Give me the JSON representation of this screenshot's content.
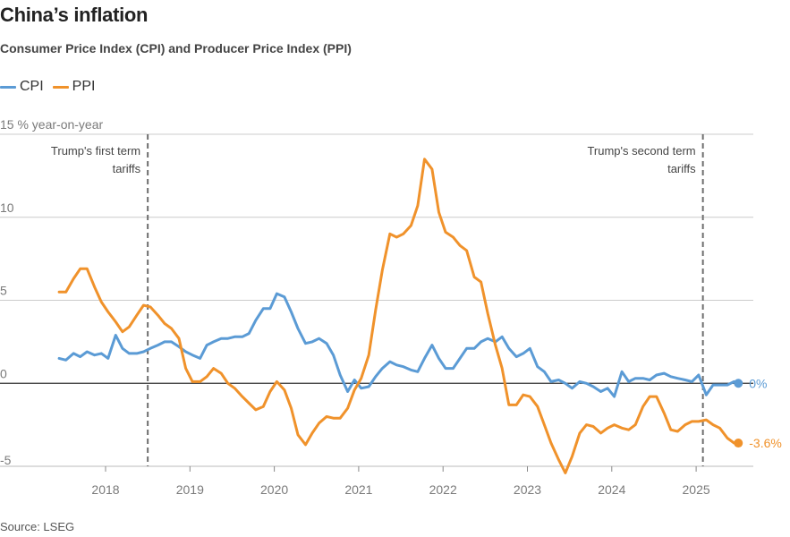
{
  "title": "China’s inflation",
  "subtitle": "Consumer Price Index (CPI) and Producer Price Index (PPI)",
  "source": "Source: LSEG",
  "legend": [
    {
      "label": "CPI",
      "color": "#5b9bd5"
    },
    {
      "label": "PPI",
      "color": "#f0922b"
    }
  ],
  "chart_data": {
    "type": "line",
    "ylabel": "% year-on-year",
    "ylim": [
      -5,
      15
    ],
    "yticks": [
      15,
      10,
      5,
      0,
      -5
    ],
    "xlim": [
      2017.3,
      2025.6
    ],
    "xticks": [
      2018,
      2019,
      2020,
      2021,
      2022,
      2023,
      2024,
      2025
    ],
    "grid": "horizontal",
    "legend_position": "top-left",
    "annotations": [
      {
        "x": 2018.5,
        "label": [
          "Trump's first term",
          "tariffs"
        ],
        "align": "left-of-line"
      },
      {
        "x": 2025.08,
        "label": [
          "Trump's second term",
          "tariffs"
        ],
        "align": "left-of-line"
      }
    ],
    "series": [
      {
        "name": "CPI",
        "color": "#5b9bd5",
        "end_label": "0%",
        "points": [
          [
            2017.45,
            1.5
          ],
          [
            2017.53,
            1.4
          ],
          [
            2017.62,
            1.8
          ],
          [
            2017.7,
            1.6
          ],
          [
            2017.78,
            1.9
          ],
          [
            2017.87,
            1.7
          ],
          [
            2017.95,
            1.8
          ],
          [
            2018.03,
            1.5
          ],
          [
            2018.12,
            2.9
          ],
          [
            2018.2,
            2.1
          ],
          [
            2018.28,
            1.8
          ],
          [
            2018.37,
            1.8
          ],
          [
            2018.45,
            1.9
          ],
          [
            2018.53,
            2.1
          ],
          [
            2018.62,
            2.3
          ],
          [
            2018.7,
            2.5
          ],
          [
            2018.78,
            2.5
          ],
          [
            2018.87,
            2.2
          ],
          [
            2018.95,
            1.9
          ],
          [
            2019.03,
            1.7
          ],
          [
            2019.12,
            1.5
          ],
          [
            2019.2,
            2.3
          ],
          [
            2019.28,
            2.5
          ],
          [
            2019.37,
            2.7
          ],
          [
            2019.45,
            2.7
          ],
          [
            2019.53,
            2.8
          ],
          [
            2019.62,
            2.8
          ],
          [
            2019.7,
            3.0
          ],
          [
            2019.78,
            3.8
          ],
          [
            2019.87,
            4.5
          ],
          [
            2019.95,
            4.5
          ],
          [
            2020.03,
            5.4
          ],
          [
            2020.12,
            5.2
          ],
          [
            2020.2,
            4.3
          ],
          [
            2020.28,
            3.3
          ],
          [
            2020.37,
            2.4
          ],
          [
            2020.45,
            2.5
          ],
          [
            2020.53,
            2.7
          ],
          [
            2020.62,
            2.4
          ],
          [
            2020.7,
            1.7
          ],
          [
            2020.78,
            0.5
          ],
          [
            2020.87,
            -0.5
          ],
          [
            2020.95,
            0.2
          ],
          [
            2021.03,
            -0.3
          ],
          [
            2021.12,
            -0.2
          ],
          [
            2021.2,
            0.4
          ],
          [
            2021.28,
            0.9
          ],
          [
            2021.37,
            1.3
          ],
          [
            2021.45,
            1.1
          ],
          [
            2021.53,
            1.0
          ],
          [
            2021.62,
            0.8
          ],
          [
            2021.7,
            0.7
          ],
          [
            2021.78,
            1.5
          ],
          [
            2021.87,
            2.3
          ],
          [
            2021.95,
            1.5
          ],
          [
            2022.03,
            0.9
          ],
          [
            2022.12,
            0.9
          ],
          [
            2022.2,
            1.5
          ],
          [
            2022.28,
            2.1
          ],
          [
            2022.37,
            2.1
          ],
          [
            2022.45,
            2.5
          ],
          [
            2022.53,
            2.7
          ],
          [
            2022.62,
            2.5
          ],
          [
            2022.7,
            2.8
          ],
          [
            2022.78,
            2.1
          ],
          [
            2022.87,
            1.6
          ],
          [
            2022.95,
            1.8
          ],
          [
            2023.03,
            2.1
          ],
          [
            2023.12,
            1.0
          ],
          [
            2023.2,
            0.7
          ],
          [
            2023.28,
            0.1
          ],
          [
            2023.37,
            0.2
          ],
          [
            2023.45,
            0.0
          ],
          [
            2023.53,
            -0.3
          ],
          [
            2023.62,
            0.1
          ],
          [
            2023.7,
            0.0
          ],
          [
            2023.78,
            -0.2
          ],
          [
            2023.87,
            -0.5
          ],
          [
            2023.95,
            -0.3
          ],
          [
            2024.03,
            -0.8
          ],
          [
            2024.12,
            0.7
          ],
          [
            2024.2,
            0.1
          ],
          [
            2024.28,
            0.3
          ],
          [
            2024.37,
            0.3
          ],
          [
            2024.45,
            0.2
          ],
          [
            2024.53,
            0.5
          ],
          [
            2024.62,
            0.6
          ],
          [
            2024.7,
            0.4
          ],
          [
            2024.78,
            0.3
          ],
          [
            2024.87,
            0.2
          ],
          [
            2024.95,
            0.1
          ],
          [
            2025.03,
            0.5
          ],
          [
            2025.12,
            -0.7
          ],
          [
            2025.2,
            -0.1
          ],
          [
            2025.28,
            -0.1
          ],
          [
            2025.37,
            -0.1
          ],
          [
            2025.45,
            0.1
          ],
          [
            2025.5,
            0.0
          ]
        ]
      },
      {
        "name": "PPI",
        "color": "#f0922b",
        "end_label": "-3.6%",
        "points": [
          [
            2017.45,
            5.5
          ],
          [
            2017.53,
            5.5
          ],
          [
            2017.62,
            6.3
          ],
          [
            2017.7,
            6.9
          ],
          [
            2017.78,
            6.9
          ],
          [
            2017.87,
            5.8
          ],
          [
            2017.95,
            4.9
          ],
          [
            2018.03,
            4.3
          ],
          [
            2018.12,
            3.7
          ],
          [
            2018.2,
            3.1
          ],
          [
            2018.28,
            3.4
          ],
          [
            2018.37,
            4.1
          ],
          [
            2018.45,
            4.7
          ],
          [
            2018.53,
            4.6
          ],
          [
            2018.62,
            4.1
          ],
          [
            2018.7,
            3.6
          ],
          [
            2018.78,
            3.3
          ],
          [
            2018.87,
            2.7
          ],
          [
            2018.95,
            0.9
          ],
          [
            2019.03,
            0.1
          ],
          [
            2019.12,
            0.1
          ],
          [
            2019.2,
            0.4
          ],
          [
            2019.28,
            0.9
          ],
          [
            2019.37,
            0.6
          ],
          [
            2019.45,
            0.0
          ],
          [
            2019.53,
            -0.3
          ],
          [
            2019.62,
            -0.8
          ],
          [
            2019.7,
            -1.2
          ],
          [
            2019.78,
            -1.6
          ],
          [
            2019.87,
            -1.4
          ],
          [
            2019.95,
            -0.5
          ],
          [
            2020.03,
            0.1
          ],
          [
            2020.12,
            -0.4
          ],
          [
            2020.2,
            -1.5
          ],
          [
            2020.28,
            -3.1
          ],
          [
            2020.37,
            -3.7
          ],
          [
            2020.45,
            -3.0
          ],
          [
            2020.53,
            -2.4
          ],
          [
            2020.62,
            -2.0
          ],
          [
            2020.7,
            -2.1
          ],
          [
            2020.78,
            -2.1
          ],
          [
            2020.87,
            -1.5
          ],
          [
            2020.95,
            -0.4
          ],
          [
            2021.03,
            0.3
          ],
          [
            2021.12,
            1.7
          ],
          [
            2021.2,
            4.4
          ],
          [
            2021.28,
            6.8
          ],
          [
            2021.37,
            9.0
          ],
          [
            2021.45,
            8.8
          ],
          [
            2021.53,
            9.0
          ],
          [
            2021.62,
            9.5
          ],
          [
            2021.7,
            10.7
          ],
          [
            2021.78,
            13.5
          ],
          [
            2021.87,
            12.9
          ],
          [
            2021.95,
            10.3
          ],
          [
            2022.03,
            9.1
          ],
          [
            2022.12,
            8.8
          ],
          [
            2022.2,
            8.3
          ],
          [
            2022.28,
            8.0
          ],
          [
            2022.37,
            6.4
          ],
          [
            2022.45,
            6.1
          ],
          [
            2022.53,
            4.2
          ],
          [
            2022.62,
            2.3
          ],
          [
            2022.7,
            0.9
          ],
          [
            2022.78,
            -1.3
          ],
          [
            2022.87,
            -1.3
          ],
          [
            2022.95,
            -0.7
          ],
          [
            2023.03,
            -0.8
          ],
          [
            2023.12,
            -1.4
          ],
          [
            2023.2,
            -2.5
          ],
          [
            2023.28,
            -3.6
          ],
          [
            2023.37,
            -4.6
          ],
          [
            2023.45,
            -5.4
          ],
          [
            2023.53,
            -4.4
          ],
          [
            2023.62,
            -3.0
          ],
          [
            2023.7,
            -2.5
          ],
          [
            2023.78,
            -2.6
          ],
          [
            2023.87,
            -3.0
          ],
          [
            2023.95,
            -2.7
          ],
          [
            2024.03,
            -2.5
          ],
          [
            2024.12,
            -2.7
          ],
          [
            2024.2,
            -2.8
          ],
          [
            2024.28,
            -2.5
          ],
          [
            2024.37,
            -1.4
          ],
          [
            2024.45,
            -0.8
          ],
          [
            2024.53,
            -0.8
          ],
          [
            2024.62,
            -1.8
          ],
          [
            2024.7,
            -2.8
          ],
          [
            2024.78,
            -2.9
          ],
          [
            2024.87,
            -2.5
          ],
          [
            2024.95,
            -2.3
          ],
          [
            2025.03,
            -2.3
          ],
          [
            2025.12,
            -2.2
          ],
          [
            2025.2,
            -2.5
          ],
          [
            2025.28,
            -2.7
          ],
          [
            2025.37,
            -3.3
          ],
          [
            2025.45,
            -3.6
          ],
          [
            2025.5,
            -3.6
          ]
        ]
      }
    ]
  }
}
